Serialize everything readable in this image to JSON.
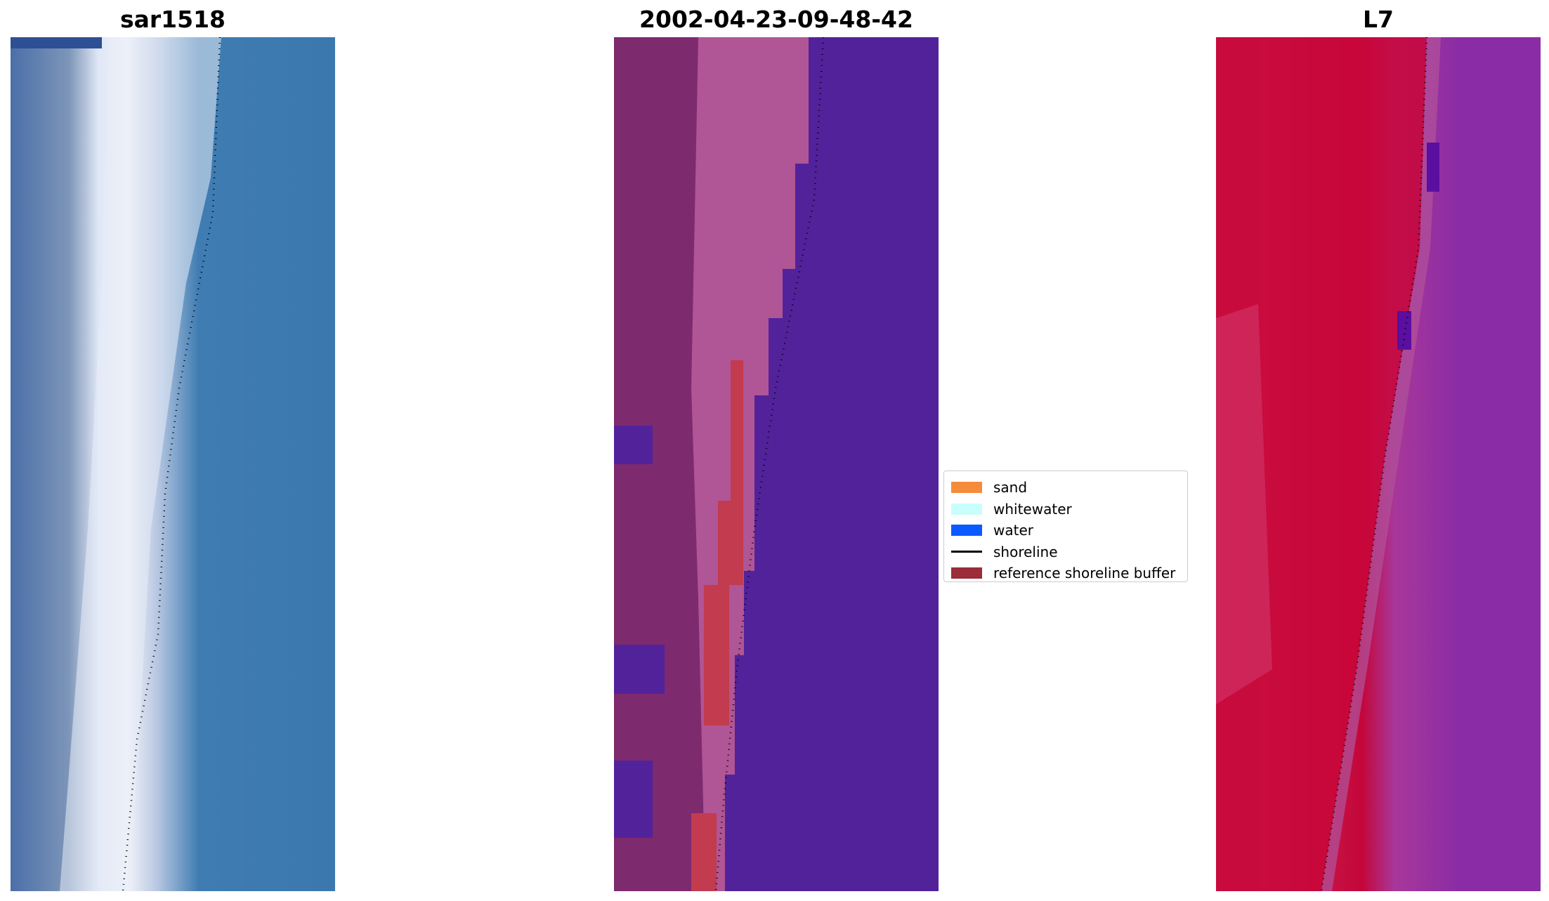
{
  "panels": [
    {
      "title": "sar1518"
    },
    {
      "title": "2002-04-23-09-48-42"
    },
    {
      "title": "L7"
    }
  ],
  "legend": {
    "items": [
      {
        "label": "sand",
        "color": "#f58c3c",
        "type": "patch"
      },
      {
        "label": "whitewater",
        "color": "#c8fffd",
        "type": "patch"
      },
      {
        "label": "water",
        "color": "#0a5aff",
        "type": "patch"
      },
      {
        "label": "shoreline",
        "color": "#000000",
        "type": "line"
      },
      {
        "label": "reference shoreline buffer",
        "color": "#9b2c3a",
        "type": "patch"
      }
    ]
  }
}
